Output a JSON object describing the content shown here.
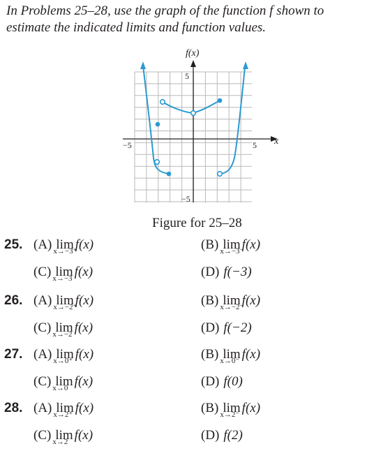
{
  "intro": "In Problems 25–28, use the graph of the function f shown to estimate the indicated limits and function values.",
  "graph": {
    "y_axis_label": "f(x)",
    "x_axis_label": "x",
    "tick_labels": {
      "x_neg": "−5",
      "x_pos": "5",
      "y_pos": "5",
      "y_neg": "−5"
    }
  },
  "caption": "Figure for 25–28",
  "problems": [
    {
      "number": "25.",
      "parts": [
        {
          "label": "(A)",
          "kind": "lim",
          "sub": "x→−3⁺",
          "expr": "f(x)"
        },
        {
          "label": "(B)",
          "kind": "lim",
          "sub": "x→−3⁻",
          "expr": "f(x)"
        },
        {
          "label": "(C)",
          "kind": "lim",
          "sub": "x→−3",
          "expr": "f(x)"
        },
        {
          "label": "(D)",
          "kind": "val",
          "expr": "f(−3)"
        }
      ]
    },
    {
      "number": "26.",
      "parts": [
        {
          "label": "(A)",
          "kind": "lim",
          "sub": "x→−2⁺",
          "expr": "f(x)"
        },
        {
          "label": "(B)",
          "kind": "lim",
          "sub": "x→−2⁻",
          "expr": "f(x)"
        },
        {
          "label": "(C)",
          "kind": "lim",
          "sub": "x→−2",
          "expr": "f(x)"
        },
        {
          "label": "(D)",
          "kind": "val",
          "expr": "f(−2)"
        }
      ]
    },
    {
      "number": "27.",
      "parts": [
        {
          "label": "(A)",
          "kind": "lim",
          "sub": "x→0⁺",
          "expr": "f(x)"
        },
        {
          "label": "(B)",
          "kind": "lim",
          "sub": "x→0⁻",
          "expr": "f(x)"
        },
        {
          "label": "(C)",
          "kind": "lim",
          "sub": "x→0",
          "expr": "f(x)"
        },
        {
          "label": "(D)",
          "kind": "val",
          "expr": "f(0)"
        }
      ]
    },
    {
      "number": "28.",
      "parts": [
        {
          "label": "(A)",
          "kind": "lim",
          "sub": "x→2⁺",
          "expr": "f(x)"
        },
        {
          "label": "(B)",
          "kind": "lim",
          "sub": "x→2⁻",
          "expr": "f(x)"
        },
        {
          "label": "(C)",
          "kind": "lim",
          "sub": "x→2",
          "expr": "f(x)"
        },
        {
          "label": "(D)",
          "kind": "val",
          "expr": "f(2)"
        }
      ]
    }
  ],
  "lim_word": "lim"
}
